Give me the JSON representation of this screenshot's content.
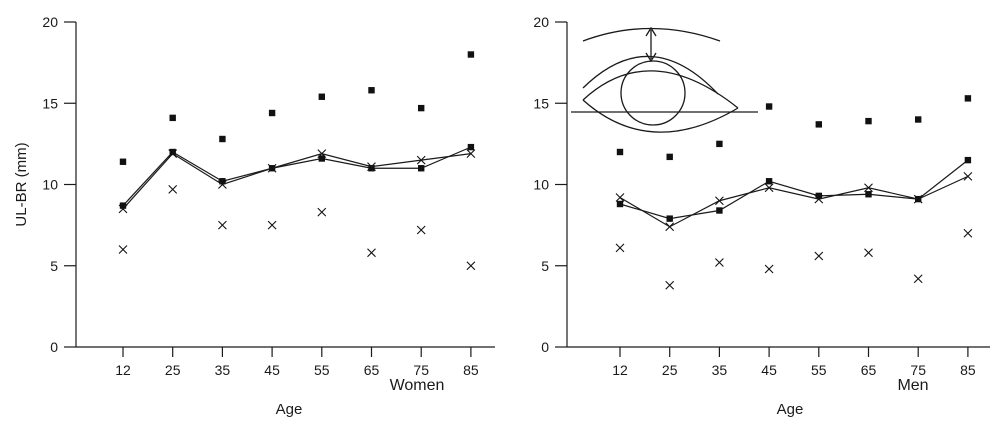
{
  "chart_data": [
    {
      "type": "scatter",
      "panel": "Women",
      "xlabel": "Age",
      "ylabel": "UL-BR (mm)",
      "categories": [
        "12",
        "25",
        "35",
        "45",
        "55",
        "65",
        "75",
        "85"
      ],
      "ylim": [
        0,
        20
      ],
      "yticks": [
        0,
        5,
        10,
        15,
        20
      ],
      "grid": false,
      "series": [
        {
          "marker": "square",
          "connected": false,
          "values": [
            11.4,
            14.1,
            12.8,
            14.4,
            15.4,
            15.8,
            14.7,
            18.0
          ]
        },
        {
          "marker": "square",
          "connected": true,
          "values": [
            8.7,
            12.0,
            10.2,
            11.0,
            11.6,
            11.0,
            11.0,
            12.3
          ]
        },
        {
          "marker": "cross",
          "connected": true,
          "values": [
            8.5,
            11.9,
            10.0,
            11.0,
            11.9,
            11.1,
            11.5,
            11.9
          ]
        },
        {
          "marker": "cross",
          "connected": false,
          "values": [
            6.0,
            9.7,
            7.5,
            7.5,
            8.3,
            5.8,
            7.2,
            5.0
          ]
        }
      ]
    },
    {
      "type": "scatter",
      "panel": "Men",
      "xlabel": "Age",
      "ylabel": "",
      "categories": [
        "12",
        "25",
        "35",
        "45",
        "55",
        "65",
        "75",
        "85"
      ],
      "ylim": [
        0,
        20
      ],
      "yticks": [
        0,
        5,
        10,
        15,
        20
      ],
      "grid": false,
      "inset": "eye-diagram-icon",
      "series": [
        {
          "marker": "square",
          "connected": false,
          "values": [
            12.0,
            11.7,
            12.5,
            14.8,
            13.7,
            13.9,
            14.0,
            15.3
          ]
        },
        {
          "marker": "square",
          "connected": true,
          "values": [
            8.8,
            7.9,
            8.4,
            10.2,
            9.3,
            9.4,
            9.1,
            11.5
          ]
        },
        {
          "marker": "cross",
          "connected": true,
          "values": [
            9.2,
            7.4,
            9.0,
            9.8,
            9.1,
            9.8,
            9.1,
            10.5
          ]
        },
        {
          "marker": "cross",
          "connected": false,
          "values": [
            6.1,
            3.8,
            5.2,
            4.8,
            5.6,
            5.8,
            4.2,
            7.0
          ]
        }
      ]
    }
  ]
}
